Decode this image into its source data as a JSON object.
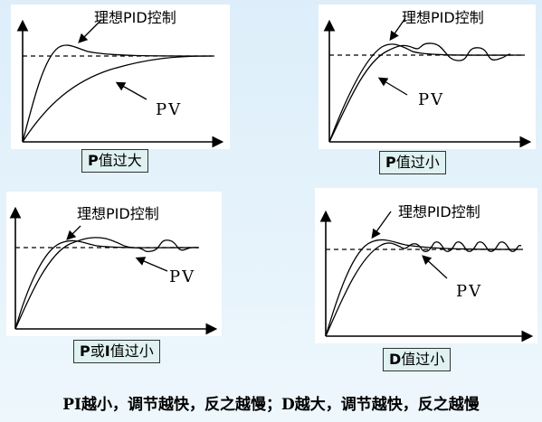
{
  "panels": [
    {
      "id": "p-too-large",
      "ideal_label": "理想PID控制",
      "pv_label": "PV",
      "caption_prefix": "P",
      "caption_suffix": "值过大"
    },
    {
      "id": "p-too-small",
      "ideal_label": "理想PID控制",
      "pv_label": "PV",
      "caption_prefix": "P",
      "caption_suffix": "值过小"
    },
    {
      "id": "pi-too-small",
      "ideal_label": "理想PID控制",
      "pv_label": "PV",
      "caption_prefix": "P",
      "caption_mid": "或",
      "caption_prefix2": "I",
      "caption_suffix": "值过小"
    },
    {
      "id": "d-too-small",
      "ideal_label": "理想PID控制",
      "pv_label": "PV",
      "caption_prefix": "D",
      "caption_suffix": "值过小"
    }
  ],
  "footer": "PI越小，调节越快，反之越慢；D越大，调节越快，反之越慢"
}
